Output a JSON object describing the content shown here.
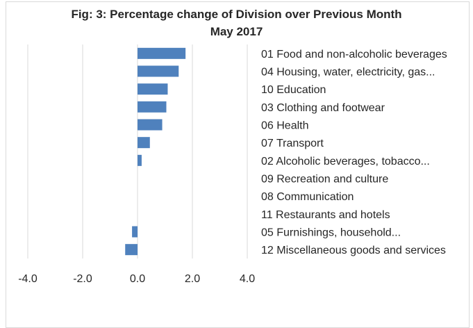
{
  "chart_data": {
    "type": "bar",
    "orientation": "horizontal",
    "title": "Fig: 3: Percentage change of Division over Previous Month",
    "subtitle": "May 2017",
    "categories": [
      "01 Food and non-alcoholic beverages",
      "04 Housing, water, electricity, gas...",
      "10 Education",
      "03 Clothing and footwear",
      "06 Health",
      "07 Transport",
      "02 Alcoholic beverages, tobacco...",
      "09 Recreation and culture",
      "08 Communication",
      "11 Restaurants and hotels",
      "05 Furnishings, household...",
      "12 Miscellaneous goods and services"
    ],
    "values": [
      1.75,
      1.5,
      1.1,
      1.05,
      0.9,
      0.45,
      0.15,
      0.0,
      0.0,
      0.0,
      -0.2,
      -0.45
    ],
    "xlim": [
      -4.0,
      4.0
    ],
    "ticks": [
      "-4.0",
      "-2.0",
      "0.0",
      "2.0",
      "4.0"
    ],
    "tick_values": [
      -4,
      -2,
      0,
      2,
      4
    ],
    "grid": true,
    "legend": "none",
    "bar_color": "#4f81bd",
    "grid_color": "#d9d9d9"
  }
}
